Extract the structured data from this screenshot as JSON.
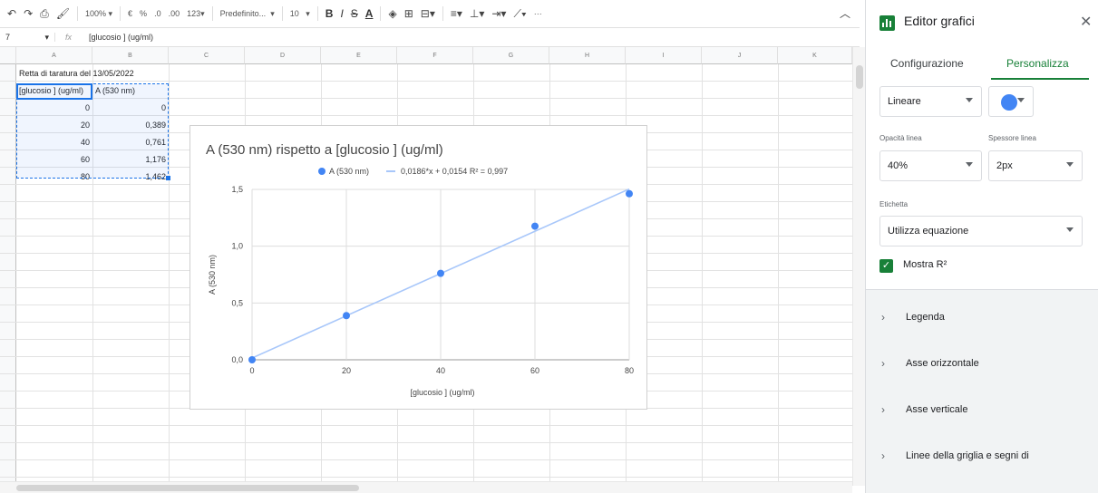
{
  "toolbar": {
    "zoom": "100%",
    "currency": "€",
    "percent": "%",
    "decrease_decimals": ".0",
    "increase_decimals": ".00",
    "more_formats": "123",
    "font_name": "Predefinito...",
    "font_size": "10",
    "more": "···"
  },
  "formula_bar": {
    "cell_ref": "7",
    "fx": "fx",
    "content": "[glucosio ] (ug/ml)"
  },
  "columns": [
    "A",
    "B",
    "C",
    "D",
    "E",
    "F",
    "G",
    "H",
    "I",
    "J",
    "K"
  ],
  "sheet": {
    "a1": "Retta di taratura del 13/05/2022",
    "header_a": "[glucosio ] (ug/ml)",
    "header_b": "A (530 nm)",
    "rows": [
      {
        "x": "0",
        "y": "0"
      },
      {
        "x": "20",
        "y": "0,389"
      },
      {
        "x": "40",
        "y": "0,761"
      },
      {
        "x": "60",
        "y": "1,176"
      },
      {
        "x": "80",
        "y": "1,462"
      }
    ]
  },
  "chart_data": {
    "type": "scatter",
    "title": "A (530 nm) rispetto a [glucosio ] (ug/ml)",
    "xlabel": "[glucosio ] (ug/ml)",
    "ylabel": "A (530 nm)",
    "x": [
      0,
      20,
      40,
      60,
      80
    ],
    "series": [
      {
        "name": "A (530 nm)",
        "values": [
          0,
          0.389,
          0.761,
          1.176,
          1.462
        ],
        "color": "#4285f4"
      }
    ],
    "trendline": {
      "label": "0,0186*x + 0,0154 R² = 0,997",
      "slope": 0.0186,
      "intercept": 0.0154,
      "color": "#a8c7fa"
    },
    "xlim": [
      0,
      80
    ],
    "ylim": [
      0,
      1.5
    ],
    "x_ticks": [
      "0",
      "20",
      "40",
      "60",
      "80"
    ],
    "y_ticks": [
      "0,0",
      "0,5",
      "1,0",
      "1,5"
    ],
    "grid": true,
    "legend_position": "top"
  },
  "sidebar": {
    "title": "Editor grafici",
    "close_icon": "close-icon",
    "tabs": [
      "Configurazione",
      "Personalizza"
    ],
    "active_tab": "Personalizza",
    "trend_type": "Lineare",
    "trend_color": "#4285f4",
    "opacity_label": "Opacità linea",
    "opacity_value": "40%",
    "thickness_label": "Spessore linea",
    "thickness_value": "2px",
    "label_label": "Etichetta",
    "label_value": "Utilizza equazione",
    "show_r2_label": "Mostra R²",
    "show_r2_checked": true,
    "sections": [
      "Legenda",
      "Asse orizzontale",
      "Asse verticale",
      "Linee della griglia e segni di"
    ]
  }
}
